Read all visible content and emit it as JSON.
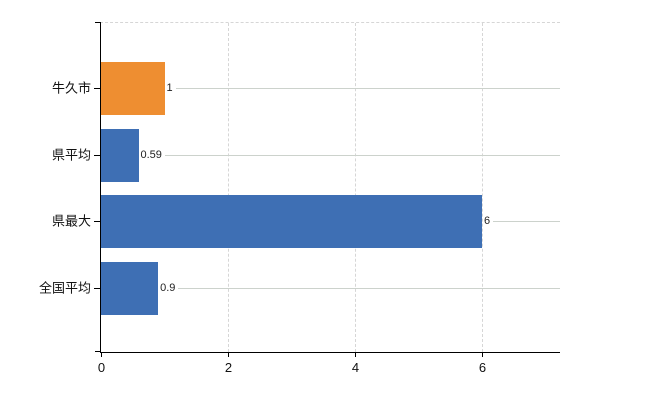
{
  "chart_data": {
    "type": "bar",
    "orientation": "horizontal",
    "title": "",
    "categories": [
      "牛久市",
      "県平均",
      "県最大",
      "全国平均"
    ],
    "values": [
      1,
      0.59,
      6,
      0.9
    ],
    "value_labels": [
      "1",
      "0.59",
      "6",
      "0.9"
    ],
    "series_colors": [
      "#ee8e31",
      "#3e6fb4",
      "#3e6fb4",
      "#3e6fb4"
    ],
    "x_ticks": [
      0,
      2,
      4,
      6
    ],
    "x_tick_labels": [
      "0",
      "2",
      "4",
      "6"
    ],
    "xlim": [
      0,
      7.2
    ],
    "legend": "none",
    "grid": {
      "vertical": "dashed",
      "top_border": "dashed",
      "horizontal_leader_lines": "solid"
    },
    "colors": {
      "bar_blue": "#3e6fb4",
      "bar_orange": "#ee8e31",
      "axis": "#000000",
      "gridline": "#d6d6d6",
      "leader_line": "#ccd2cc",
      "text": "#111111",
      "background": "#ffffff"
    }
  }
}
